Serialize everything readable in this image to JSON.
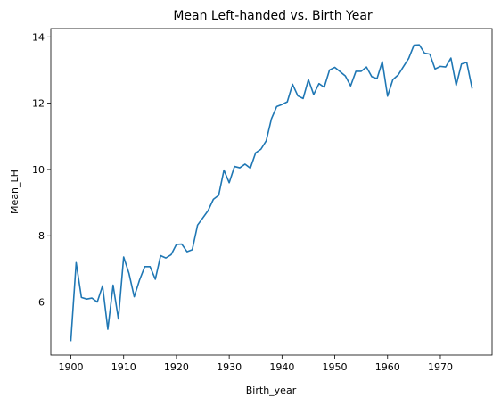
{
  "chart_data": {
    "type": "line",
    "title": "Mean Left-handed vs. Birth Year",
    "xlabel": "Birth_year",
    "ylabel": "Mean_LH",
    "xlim": [
      1896.2,
      1979.8
    ],
    "ylim": [
      4.4,
      14.25
    ],
    "xticks": [
      1900,
      1910,
      1920,
      1930,
      1940,
      1950,
      1960,
      1970
    ],
    "yticks": [
      6,
      8,
      10,
      12,
      14
    ],
    "grid": false,
    "legend": "none",
    "color": "#1f77b4",
    "x": [
      1900,
      1901,
      1902,
      1903,
      1904,
      1905,
      1906,
      1907,
      1908,
      1909,
      1910,
      1911,
      1912,
      1913,
      1914,
      1915,
      1916,
      1917,
      1918,
      1919,
      1920,
      1921,
      1922,
      1923,
      1924,
      1925,
      1926,
      1927,
      1928,
      1929,
      1930,
      1931,
      1932,
      1933,
      1934,
      1935,
      1936,
      1937,
      1938,
      1939,
      1940,
      1941,
      1942,
      1943,
      1944,
      1945,
      1946,
      1947,
      1948,
      1949,
      1950,
      1951,
      1952,
      1953,
      1954,
      1955,
      1956,
      1957,
      1958,
      1959,
      1960,
      1961,
      1962,
      1963,
      1964,
      1965,
      1966,
      1967,
      1968,
      1969,
      1970,
      1971,
      1972,
      1973,
      1974,
      1975,
      1976
    ],
    "y": [
      4.84,
      7.19,
      6.14,
      6.09,
      6.12,
      6.0,
      6.49,
      5.18,
      6.51,
      5.49,
      7.36,
      6.87,
      6.16,
      6.66,
      7.07,
      7.07,
      6.69,
      7.4,
      7.33,
      7.43,
      7.74,
      7.75,
      7.52,
      7.58,
      8.32,
      8.54,
      8.76,
      9.1,
      9.22,
      9.98,
      9.6,
      10.09,
      10.05,
      10.16,
      10.04,
      10.5,
      10.61,
      10.86,
      11.53,
      11.9,
      11.96,
      12.04,
      12.57,
      12.22,
      12.14,
      12.71,
      12.26,
      12.59,
      12.48,
      13.0,
      13.08,
      12.95,
      12.82,
      12.52,
      12.96,
      12.96,
      13.09,
      12.8,
      12.74,
      13.25,
      12.21,
      12.71,
      12.85,
      13.1,
      13.35,
      13.75,
      13.76,
      13.51,
      13.48,
      13.03,
      13.11,
      13.09,
      13.36,
      12.54,
      13.18,
      13.23,
      12.46
    ]
  }
}
